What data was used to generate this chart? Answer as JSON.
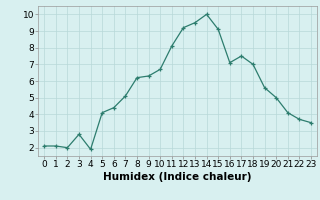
{
  "x": [
    0,
    1,
    2,
    3,
    4,
    5,
    6,
    7,
    8,
    9,
    10,
    11,
    12,
    13,
    14,
    15,
    16,
    17,
    18,
    19,
    20,
    21,
    22,
    23
  ],
  "y": [
    2.1,
    2.1,
    2.0,
    2.8,
    1.9,
    4.1,
    4.4,
    5.1,
    6.2,
    6.3,
    6.7,
    8.1,
    9.2,
    9.5,
    10.0,
    9.1,
    7.1,
    7.5,
    7.0,
    5.6,
    5.0,
    4.1,
    3.7,
    3.5
  ],
  "line_color": "#2d7d6e",
  "marker": "+",
  "marker_size": 3,
  "bg_color": "#d8f0f0",
  "grid_color": "#b8d8d8",
  "xlabel": "Humidex (Indice chaleur)",
  "xlim": [
    -0.5,
    23.5
  ],
  "ylim": [
    1.5,
    10.5
  ],
  "yticks": [
    2,
    3,
    4,
    5,
    6,
    7,
    8,
    9,
    10
  ],
  "xticks": [
    0,
    1,
    2,
    3,
    4,
    5,
    6,
    7,
    8,
    9,
    10,
    11,
    12,
    13,
    14,
    15,
    16,
    17,
    18,
    19,
    20,
    21,
    22,
    23
  ],
  "tick_fontsize": 6.5,
  "xlabel_fontsize": 7.5,
  "xlabel_bold": true,
  "linewidth": 0.9,
  "markeredgewidth": 0.9
}
